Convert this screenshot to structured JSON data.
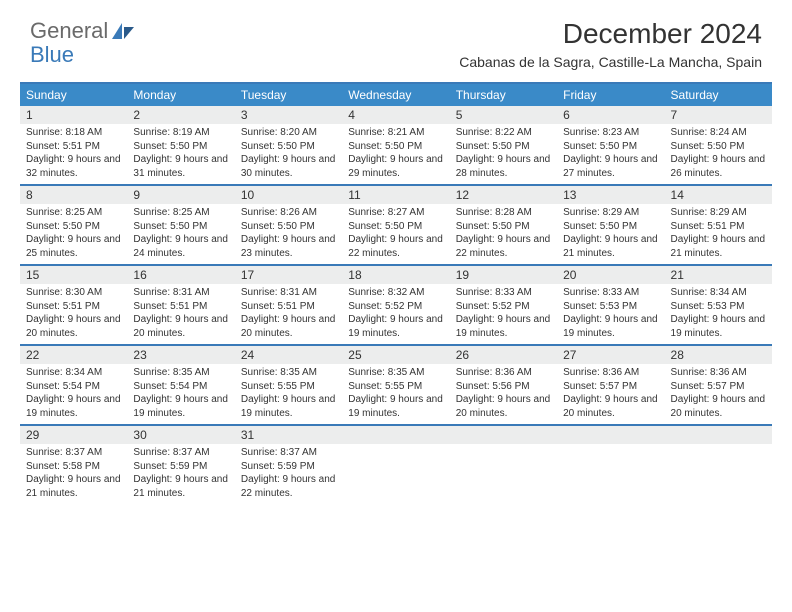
{
  "logo": {
    "word1": "General",
    "word2": "Blue"
  },
  "title": "December 2024",
  "location": "Cabanas de la Sagra, Castille-La Mancha, Spain",
  "header_bg": "#3a8ac8",
  "border_color": "#3a7ab8",
  "daynum_bg": "#eceded",
  "weekdays": [
    "Sunday",
    "Monday",
    "Tuesday",
    "Wednesday",
    "Thursday",
    "Friday",
    "Saturday"
  ],
  "weeks": [
    [
      {
        "n": "1",
        "sr": "8:18 AM",
        "ss": "5:51 PM",
        "dl": "9 hours and 32 minutes."
      },
      {
        "n": "2",
        "sr": "8:19 AM",
        "ss": "5:50 PM",
        "dl": "9 hours and 31 minutes."
      },
      {
        "n": "3",
        "sr": "8:20 AM",
        "ss": "5:50 PM",
        "dl": "9 hours and 30 minutes."
      },
      {
        "n": "4",
        "sr": "8:21 AM",
        "ss": "5:50 PM",
        "dl": "9 hours and 29 minutes."
      },
      {
        "n": "5",
        "sr": "8:22 AM",
        "ss": "5:50 PM",
        "dl": "9 hours and 28 minutes."
      },
      {
        "n": "6",
        "sr": "8:23 AM",
        "ss": "5:50 PM",
        "dl": "9 hours and 27 minutes."
      },
      {
        "n": "7",
        "sr": "8:24 AM",
        "ss": "5:50 PM",
        "dl": "9 hours and 26 minutes."
      }
    ],
    [
      {
        "n": "8",
        "sr": "8:25 AM",
        "ss": "5:50 PM",
        "dl": "9 hours and 25 minutes."
      },
      {
        "n": "9",
        "sr": "8:25 AM",
        "ss": "5:50 PM",
        "dl": "9 hours and 24 minutes."
      },
      {
        "n": "10",
        "sr": "8:26 AM",
        "ss": "5:50 PM",
        "dl": "9 hours and 23 minutes."
      },
      {
        "n": "11",
        "sr": "8:27 AM",
        "ss": "5:50 PM",
        "dl": "9 hours and 22 minutes."
      },
      {
        "n": "12",
        "sr": "8:28 AM",
        "ss": "5:50 PM",
        "dl": "9 hours and 22 minutes."
      },
      {
        "n": "13",
        "sr": "8:29 AM",
        "ss": "5:50 PM",
        "dl": "9 hours and 21 minutes."
      },
      {
        "n": "14",
        "sr": "8:29 AM",
        "ss": "5:51 PM",
        "dl": "9 hours and 21 minutes."
      }
    ],
    [
      {
        "n": "15",
        "sr": "8:30 AM",
        "ss": "5:51 PM",
        "dl": "9 hours and 20 minutes."
      },
      {
        "n": "16",
        "sr": "8:31 AM",
        "ss": "5:51 PM",
        "dl": "9 hours and 20 minutes."
      },
      {
        "n": "17",
        "sr": "8:31 AM",
        "ss": "5:51 PM",
        "dl": "9 hours and 20 minutes."
      },
      {
        "n": "18",
        "sr": "8:32 AM",
        "ss": "5:52 PM",
        "dl": "9 hours and 19 minutes."
      },
      {
        "n": "19",
        "sr": "8:33 AM",
        "ss": "5:52 PM",
        "dl": "9 hours and 19 minutes."
      },
      {
        "n": "20",
        "sr": "8:33 AM",
        "ss": "5:53 PM",
        "dl": "9 hours and 19 minutes."
      },
      {
        "n": "21",
        "sr": "8:34 AM",
        "ss": "5:53 PM",
        "dl": "9 hours and 19 minutes."
      }
    ],
    [
      {
        "n": "22",
        "sr": "8:34 AM",
        "ss": "5:54 PM",
        "dl": "9 hours and 19 minutes."
      },
      {
        "n": "23",
        "sr": "8:35 AM",
        "ss": "5:54 PM",
        "dl": "9 hours and 19 minutes."
      },
      {
        "n": "24",
        "sr": "8:35 AM",
        "ss": "5:55 PM",
        "dl": "9 hours and 19 minutes."
      },
      {
        "n": "25",
        "sr": "8:35 AM",
        "ss": "5:55 PM",
        "dl": "9 hours and 19 minutes."
      },
      {
        "n": "26",
        "sr": "8:36 AM",
        "ss": "5:56 PM",
        "dl": "9 hours and 20 minutes."
      },
      {
        "n": "27",
        "sr": "8:36 AM",
        "ss": "5:57 PM",
        "dl": "9 hours and 20 minutes."
      },
      {
        "n": "28",
        "sr": "8:36 AM",
        "ss": "5:57 PM",
        "dl": "9 hours and 20 minutes."
      }
    ],
    [
      {
        "n": "29",
        "sr": "8:37 AM",
        "ss": "5:58 PM",
        "dl": "9 hours and 21 minutes."
      },
      {
        "n": "30",
        "sr": "8:37 AM",
        "ss": "5:59 PM",
        "dl": "9 hours and 21 minutes."
      },
      {
        "n": "31",
        "sr": "8:37 AM",
        "ss": "5:59 PM",
        "dl": "9 hours and 22 minutes."
      },
      null,
      null,
      null,
      null
    ]
  ],
  "labels": {
    "sunrise": "Sunrise:",
    "sunset": "Sunset:",
    "daylight": "Daylight:"
  }
}
